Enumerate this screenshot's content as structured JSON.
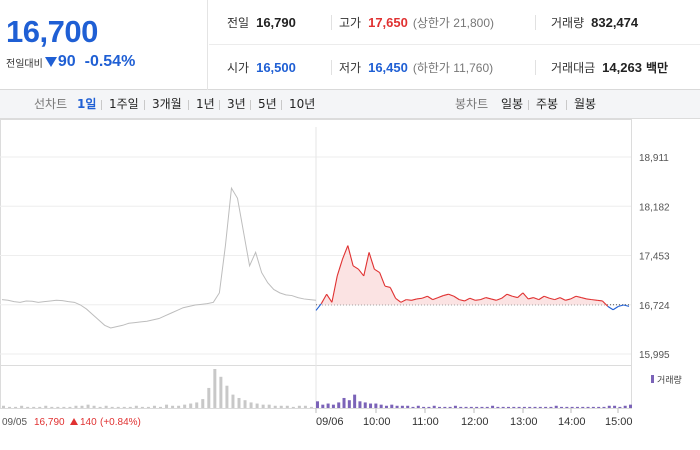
{
  "quote": {
    "price": "16,700",
    "change_label": "전일대비",
    "change_value": "90",
    "change_percent": "-0.54%",
    "direction": "down"
  },
  "stats": {
    "prev_close": {
      "label": "전일",
      "value": "16,790"
    },
    "high": {
      "label": "고가",
      "value": "17,650",
      "sub": "(상한가 21,800)"
    },
    "volume": {
      "label": "거래량",
      "value": "832,474"
    },
    "open": {
      "label": "시가",
      "value": "16,500"
    },
    "low": {
      "label": "저가",
      "value": "16,450",
      "sub": "(하한가 11,760)"
    },
    "trade_amount": {
      "label": "거래대금",
      "value": "14,263",
      "unit": "백만"
    }
  },
  "toolbar": {
    "line_chart_label": "선차트",
    "periods": [
      "1일",
      "1주일",
      "3개월",
      "1년",
      "3년",
      "5년",
      "10년"
    ],
    "active_period": "1일",
    "candle_chart_label": "봉차트",
    "candle_periods": [
      "일봉",
      "주봉",
      "월봉"
    ]
  },
  "colors": {
    "up": "#e03131",
    "down": "#1f5fd4",
    "prev_day_line": "#bdbdbd",
    "volume_prev": "#c8c8c8",
    "volume_today": "#7b63b8"
  },
  "chart_data": {
    "type": "line",
    "y_ticks": [
      "18,911",
      "18,182",
      "17,453",
      "16,724",
      "15,995"
    ],
    "ylim": [
      15995,
      18911
    ],
    "reference_price": 16724,
    "x_ticks": [
      "09/06",
      "10:00",
      "11:00",
      "12:00",
      "13:00",
      "14:00",
      "15:00"
    ],
    "previous_day_date": "09/05",
    "previous_day_summary": {
      "close": "16,790",
      "change": "140",
      "change_pct": "(+0.84%)"
    },
    "volume_legend": "거래량",
    "prev_day_series": [
      16800,
      16790,
      16770,
      16760,
      16780,
      16775,
      16760,
      16770,
      16780,
      16790,
      16785,
      16770,
      16760,
      16720,
      16660,
      16580,
      16500,
      16420,
      16380,
      16400,
      16420,
      16450,
      16460,
      16470,
      16480,
      16500,
      16520,
      16560,
      16600,
      16640,
      16680,
      16700,
      16720,
      16730,
      16740,
      16760,
      16900,
      17600,
      18450,
      18300,
      17800,
      17300,
      17500,
      17200,
      17050,
      16950,
      16900,
      16870,
      16860,
      16830,
      16810,
      16800,
      16790
    ],
    "today_series": [
      16640,
      16740,
      16880,
      16760,
      17150,
      17400,
      17600,
      17300,
      17250,
      17150,
      17500,
      17250,
      17200,
      17000,
      16980,
      16820,
      16760,
      16800,
      16790,
      16810,
      16820,
      16850,
      16800,
      16830,
      16860,
      16880,
      16850,
      16800,
      16780,
      16820,
      16790,
      16800,
      16830,
      16810,
      16790,
      16820,
      16880,
      16850,
      16830,
      16900,
      16810,
      16830,
      16800,
      16850,
      16820,
      16800,
      16830,
      16790,
      16810,
      16850,
      16830,
      16810,
      16800,
      16790,
      16780,
      16700,
      16650,
      16700,
      16720,
      16700
    ],
    "prev_day_volume": [
      2,
      1,
      1,
      2,
      1,
      1,
      1,
      2,
      1,
      1,
      1,
      1,
      2,
      2,
      3,
      2,
      1,
      2,
      1,
      1,
      1,
      1,
      2,
      1,
      1,
      2,
      1,
      3,
      2,
      2,
      3,
      4,
      5,
      8,
      18,
      35,
      28,
      20,
      12,
      9,
      7,
      5,
      4,
      3,
      3,
      2,
      2,
      2,
      1,
      2,
      2,
      1,
      1
    ],
    "today_volume": [
      6,
      3,
      4,
      3,
      5,
      9,
      7,
      12,
      6,
      5,
      4,
      4,
      3,
      2,
      3,
      2,
      2,
      2,
      1,
      2,
      1,
      1,
      2,
      1,
      1,
      1,
      2,
      1,
      1,
      1,
      1,
      1,
      1,
      2,
      1,
      1,
      1,
      1,
      1,
      1,
      1,
      1,
      1,
      1,
      1,
      2,
      1,
      1,
      1,
      1,
      1,
      1,
      1,
      1,
      1,
      2,
      2,
      1,
      2,
      3
    ]
  }
}
